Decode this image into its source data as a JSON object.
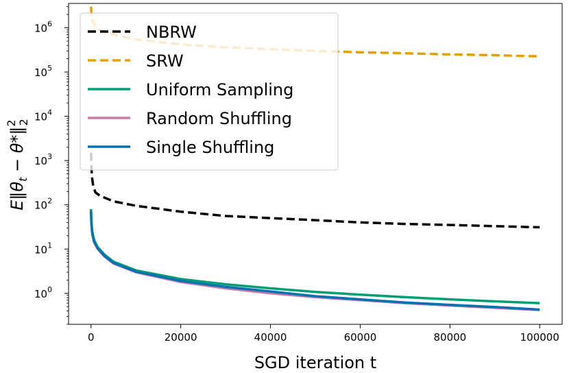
{
  "chart_data": {
    "type": "line",
    "title": "",
    "xlabel": "SGD iteration t",
    "ylabel": "E‖θ",
    "ylabel_sub_t": "t",
    "ylabel_mid": " − θ*‖",
    "ylabel_sup": "2",
    "ylabel_sub": "2",
    "x_scale": "linear",
    "y_scale": "log",
    "xlim": [
      -5000,
      105000
    ],
    "ylim_log10": [
      -0.7,
      6.55
    ],
    "x_ticks": [
      0,
      20000,
      40000,
      60000,
      80000,
      100000
    ],
    "x_tick_labels": [
      "0",
      "20000",
      "40000",
      "60000",
      "80000",
      "100000"
    ],
    "y_ticks_exp": [
      0,
      1,
      2,
      3,
      4,
      5,
      6
    ],
    "y_tick_base": "10",
    "y_tick_exps": [
      "0",
      "1",
      "2",
      "3",
      "4",
      "5",
      "6"
    ],
    "grid": false,
    "legend_position": "top-left",
    "series": [
      {
        "name": "NBRW",
        "color": "#000000",
        "dashed": true,
        "x": [
          0,
          200,
          500,
          1000,
          2000,
          5000,
          10000,
          20000,
          30000,
          40000,
          50000,
          60000,
          70000,
          80000,
          90000,
          100000
        ],
        "y": [
          1500,
          450,
          260,
          190,
          160,
          120,
          95,
          70,
          56,
          50,
          45,
          40,
          37,
          35,
          33,
          31
        ]
      },
      {
        "name": "SRW",
        "color": "#E69F00",
        "dashed": true,
        "x": [
          0,
          200,
          500,
          1000,
          2000,
          5000,
          10000,
          20000,
          30000,
          40000,
          50000,
          60000,
          70000,
          80000,
          90000,
          100000
        ],
        "y": [
          3000000,
          1500000,
          1300000,
          1100000,
          900000,
          700000,
          550000,
          420000,
          360000,
          330000,
          300000,
          280000,
          265000,
          250000,
          240000,
          225000
        ]
      },
      {
        "name": "Uniform Sampling",
        "color": "#009E73",
        "dashed": false,
        "x": [
          0,
          100,
          300,
          700,
          1500,
          3000,
          5000,
          10000,
          20000,
          30000,
          40000,
          50000,
          60000,
          70000,
          80000,
          90000,
          100000
        ],
        "y": [
          80,
          40,
          24,
          16,
          11,
          7.5,
          5.2,
          3.3,
          2.1,
          1.6,
          1.3,
          1.08,
          0.93,
          0.82,
          0.73,
          0.66,
          0.6
        ]
      },
      {
        "name": "Random Shuffling",
        "color": "#CC79A7",
        "dashed": false,
        "x": [
          0,
          100,
          300,
          700,
          1500,
          3000,
          5000,
          10000,
          20000,
          30000,
          40000,
          50000,
          60000,
          70000,
          80000,
          90000,
          100000
        ],
        "y": [
          70,
          35,
          21,
          14,
          10,
          6.8,
          4.7,
          3.0,
          1.8,
          1.3,
          1.0,
          0.82,
          0.7,
          0.6,
          0.53,
          0.47,
          0.42
        ]
      },
      {
        "name": "Single Shuffling",
        "color": "#0072B2",
        "dashed": false,
        "x": [
          0,
          100,
          300,
          700,
          1500,
          3000,
          5000,
          10000,
          20000,
          30000,
          40000,
          50000,
          60000,
          70000,
          80000,
          90000,
          100000
        ],
        "y": [
          75,
          37,
          22,
          15,
          10.5,
          7.0,
          4.9,
          3.1,
          1.9,
          1.4,
          1.1,
          0.86,
          0.73,
          0.62,
          0.55,
          0.49,
          0.43
        ]
      }
    ]
  }
}
